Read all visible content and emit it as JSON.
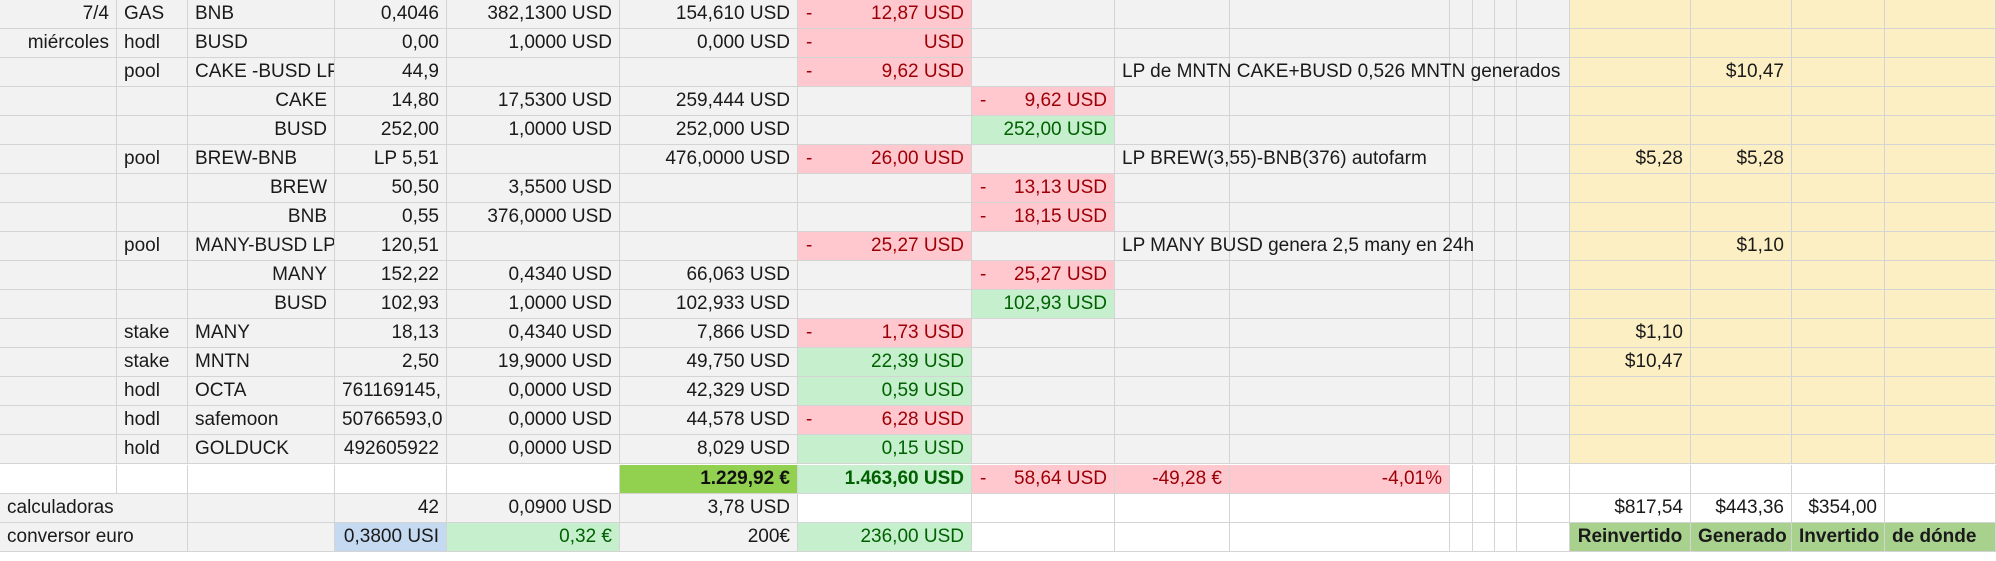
{
  "colors": {
    "negative_fill": "#ffc7ce",
    "negative_text": "#9c0006",
    "positive_fill": "#c6efce",
    "positive_text": "#006100",
    "total_fill": "#92d050",
    "summary_fill": "#fdefc4",
    "header_fill": "#a9d18e",
    "input_fill": "#c5d9f1"
  },
  "rows": [
    {
      "date": "7/4",
      "type": "GAS",
      "asset": "BNB",
      "qty": "0,4046",
      "price": "382,1300 USD",
      "value": "154,610 USD",
      "change": {
        "sign": "-",
        "amount": "12,87 USD"
      }
    },
    {
      "date": "miércoles",
      "type": "hodl",
      "asset": "BUSD",
      "qty": "0,00",
      "price": "1,0000 USD",
      "value": "0,000 USD",
      "change": {
        "sign": "-",
        "amount": "USD"
      }
    },
    {
      "type": "pool",
      "asset": "CAKE -BUSD LP",
      "qty": "44,9",
      "change": {
        "sign": "-",
        "amount": "9,62 USD"
      },
      "note": "LP de MNTN CAKE+BUSD 0,526 MNTN generados",
      "generado": "$10,47"
    },
    {
      "asset": "CAKE",
      "qty": "14,80",
      "price": "17,5300 USD",
      "value": "259,444 USD",
      "sub": {
        "sign": "-",
        "amount": "9,62 USD"
      }
    },
    {
      "asset": "BUSD",
      "qty": "252,00",
      "price": "1,0000 USD",
      "value": "252,000 USD",
      "sub": {
        "amount": "252,00 USD"
      }
    },
    {
      "type": "pool",
      "asset": "BREW-BNB",
      "qty": "LP 5,51",
      "value": "476,0000 USD",
      "change": {
        "sign": "-",
        "amount": "26,00 USD"
      },
      "note": "LP BREW(3,55)-BNB(376) autofarm",
      "reinvertido": "$5,28",
      "generado": "$5,28"
    },
    {
      "asset": "BREW",
      "qty": "50,50",
      "price": "3,5500 USD",
      "sub": {
        "sign": "-",
        "amount": "13,13 USD"
      }
    },
    {
      "asset": "BNB",
      "qty": "0,55",
      "price": "376,0000 USD",
      "sub": {
        "sign": "-",
        "amount": "18,15 USD"
      }
    },
    {
      "type": "pool",
      "asset": "MANY-BUSD LP",
      "qty": "120,51",
      "change": {
        "sign": "-",
        "amount": "25,27 USD"
      },
      "note": "LP MANY BUSD genera 2,5 many en 24h",
      "generado": "$1,10"
    },
    {
      "asset": "MANY",
      "qty": "152,22",
      "price": "0,4340 USD",
      "value": "66,063 USD",
      "sub": {
        "sign": "-",
        "amount": "25,27 USD"
      }
    },
    {
      "asset": "BUSD",
      "qty": "102,93",
      "price": "1,0000 USD",
      "value": "102,933 USD",
      "sub": {
        "amount": "102,93 USD"
      }
    },
    {
      "type": "stake",
      "asset": "MANY",
      "qty": "18,13",
      "price": "0,4340 USD",
      "value": "7,866 USD",
      "change": {
        "sign": "-",
        "amount": "1,73 USD"
      },
      "reinvertido": "$1,10"
    },
    {
      "type": "stake",
      "asset": "MNTN",
      "qty": "2,50",
      "price": "19,9000 USD",
      "value": "49,750 USD",
      "change": {
        "amount": "22,39 USD"
      },
      "reinvertido": "$10,47"
    },
    {
      "type": "hodl",
      "asset": "OCTA",
      "qty": "761169145,",
      "price": "0,0000 USD",
      "value": "42,329 USD",
      "change": {
        "amount": "0,59 USD"
      }
    },
    {
      "type": "hodl",
      "asset": "safemoon",
      "qty": "50766593,0",
      "price": "0,0000 USD",
      "value": "44,578 USD",
      "change": {
        "sign": "-",
        "amount": "6,28 USD"
      }
    },
    {
      "type": "hold",
      "asset": "GOLDUCK",
      "qty": "492605922",
      "price": "0,0000 USD",
      "value": "8,029 USD",
      "change": {
        "amount": "0,15 USD"
      }
    }
  ],
  "totals": {
    "eur_total": "1.229,92 €",
    "usd_total": "1.463,60 USD",
    "diff": {
      "sign": "-",
      "amount": "58,64 USD"
    },
    "diff_eur": "-49,28 €",
    "diff_pct": "-4,01%"
  },
  "calc": {
    "label": "calculadoras",
    "qty": "42",
    "price": "0,0900 USD",
    "value": "3,78 USD",
    "reinvertido": "$817,54",
    "generado": "$443,36",
    "invertido": "$354,00"
  },
  "conversor": {
    "label": "conversor euro",
    "rate": "0,3800 USI",
    "eur": "0,32 €",
    "amount": "200€",
    "usd": "236,00 USD"
  },
  "summary_headers": {
    "reinvertido": "Reinvertido",
    "generado": "Generado",
    "invertido": "Invertido",
    "de_donde": "de dónde"
  }
}
